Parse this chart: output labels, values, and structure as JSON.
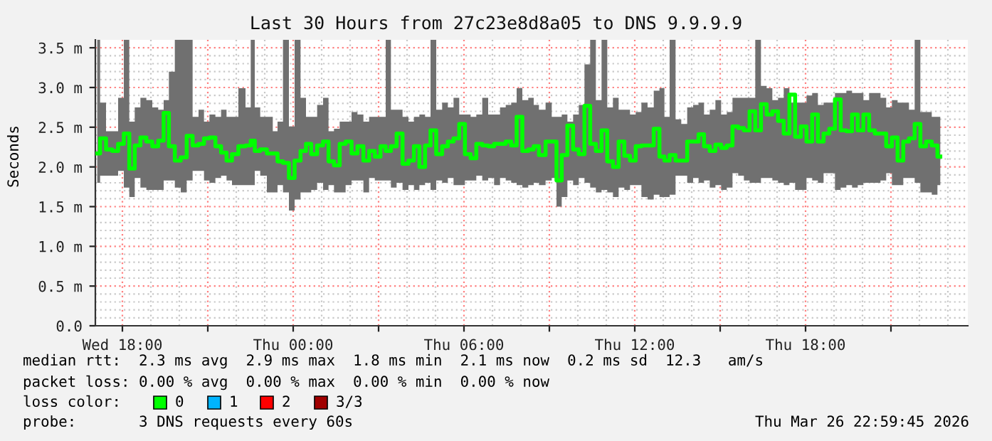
{
  "chart_data": {
    "type": "step",
    "title": "Last 30 Hours from 27c23e8d8a05 to DNS 9.9.9.9",
    "ylabel": "Seconds",
    "xlim": [
      "2026-03-25T17:03",
      "2026-03-26T23:42"
    ],
    "ylim": [
      0,
      3.6
    ],
    "xticks": [
      {
        "value": "2026-03-25T18:00",
        "label": "Wed 18:00"
      },
      {
        "value": "2026-03-25T21:00",
        "label": null
      },
      {
        "value": "2026-03-26T00:00",
        "label": "Thu 00:00"
      },
      {
        "value": "2026-03-26T03:00",
        "label": null
      },
      {
        "value": "2026-03-26T06:00",
        "label": "Thu 06:00"
      },
      {
        "value": "2026-03-26T09:00",
        "label": null
      },
      {
        "value": "2026-03-26T12:00",
        "label": "Thu 12:00"
      },
      {
        "value": "2026-03-26T15:00",
        "label": null
      },
      {
        "value": "2026-03-26T18:00",
        "label": "Thu 18:00"
      },
      {
        "value": "2026-03-26T21:00",
        "label": null
      }
    ],
    "yticks": [
      {
        "value": 0,
        "label": "0.0"
      },
      {
        "value": 0.5,
        "label": "0.5 m"
      },
      {
        "value": 1.0,
        "label": "1.0 m"
      },
      {
        "value": 1.5,
        "label": "1.5 m"
      },
      {
        "value": 2.0,
        "label": "2.0 m"
      },
      {
        "value": 2.5,
        "label": "2.5 m"
      },
      {
        "value": 3.0,
        "label": "3.0 m"
      },
      {
        "value": 3.5,
        "label": "3.5 m"
      }
    ],
    "grid": true,
    "annotations": [
      "median rtt:  2.3 ms avg  2.9 ms max  1.8 ms min  2.1 ms now  0.2 ms sd  12.3   am/s",
      "packet loss: 0.00 % avg  0.00 % max  0.00 % min  0.00 % now",
      "loss color:",
      "0",
      "1",
      "2",
      "3/3",
      "probe:       3 DNS requests every 60s",
      "Thu Mar 26 22:59:45 2026"
    ],
    "series": [
      {
        "color": "#00ff00",
        "x": [
          "2026-03-25T17:07",
          "2026-03-25T17:19",
          "2026-03-25T17:32",
          "2026-03-25T17:45",
          "2026-03-25T17:57",
          "2026-03-25T18:09",
          "2026-03-25T18:20",
          "2026-03-25T18:32",
          "2026-03-25T18:44",
          "2026-03-25T18:57",
          "2026-03-25T19:09",
          "2026-03-25T19:22",
          "2026-03-25T19:32",
          "2026-03-25T19:44",
          "2026-03-25T19:57",
          "2026-03-25T20:09",
          "2026-03-25T20:22",
          "2026-03-25T20:34",
          "2026-03-25T20:47",
          "2026-03-25T20:57",
          "2026-03-25T21:10",
          "2026-03-25T21:22",
          "2026-03-25T21:34",
          "2026-03-25T21:45",
          "2026-03-25T21:57",
          "2026-03-25T22:12",
          "2026-03-25T22:27",
          "2026-03-25T22:34",
          "2026-03-25T22:44",
          "2026-03-25T22:57",
          "2026-03-25T23:12",
          "2026-03-25T23:22",
          "2026-03-25T23:32",
          "2026-03-25T23:45",
          "2026-03-25T23:57",
          "2026-03-26T00:09",
          "2026-03-26T00:22",
          "2026-03-26T00:32",
          "2026-03-26T00:44",
          "2026-03-26T00:57",
          "2026-03-26T01:09",
          "2026-03-26T01:20",
          "2026-03-26T01:32",
          "2026-03-26T01:44",
          "2026-03-26T01:57",
          "2026-03-26T02:09",
          "2026-03-26T02:22",
          "2026-03-26T02:34",
          "2026-03-26T02:46",
          "2026-03-26T02:58",
          "2026-03-26T03:10",
          "2026-03-26T03:20",
          "2026-03-26T03:32",
          "2026-03-26T03:44",
          "2026-03-26T03:57",
          "2026-03-26T04:09",
          "2026-03-26T04:20",
          "2026-03-26T04:32",
          "2026-03-26T04:44",
          "2026-03-26T04:55",
          "2026-03-26T05:08",
          "2026-03-26T05:20",
          "2026-03-26T05:32",
          "2026-03-26T05:44",
          "2026-03-26T05:56",
          "2026-03-26T06:08",
          "2026-03-26T06:20",
          "2026-03-26T06:32",
          "2026-03-26T06:45",
          "2026-03-26T06:57",
          "2026-03-26T07:10",
          "2026-03-26T07:22",
          "2026-03-26T07:34",
          "2026-03-26T07:45",
          "2026-03-26T07:57",
          "2026-03-26T08:09",
          "2026-03-26T08:22",
          "2026-03-26T08:32",
          "2026-03-26T08:44",
          "2026-03-26T09:00",
          "2026-03-26T09:10",
          "2026-03-26T09:20",
          "2026-03-26T09:32",
          "2026-03-26T09:44",
          "2026-03-26T09:56",
          "2026-03-26T10:08",
          "2026-03-26T10:20",
          "2026-03-26T10:32",
          "2026-03-26T10:44",
          "2026-03-26T10:56",
          "2026-03-26T11:08",
          "2026-03-26T11:20",
          "2026-03-26T11:32",
          "2026-03-26T11:44",
          "2026-03-26T11:56",
          "2026-03-26T12:08",
          "2026-03-26T12:20",
          "2026-03-26T12:34",
          "2026-03-26T12:46",
          "2026-03-26T12:58",
          "2026-03-26T13:07",
          "2026-03-26T13:20",
          "2026-03-26T13:32",
          "2026-03-26T13:44",
          "2026-03-26T13:57",
          "2026-03-26T14:09",
          "2026-03-26T14:20",
          "2026-03-26T14:32",
          "2026-03-26T14:44",
          "2026-03-26T14:56",
          "2026-03-26T15:08",
          "2026-03-26T15:20",
          "2026-03-26T15:32",
          "2026-03-26T15:44",
          "2026-03-26T15:56",
          "2026-03-26T16:08",
          "2026-03-26T16:20",
          "2026-03-26T16:32",
          "2026-03-26T16:44",
          "2026-03-26T16:56",
          "2026-03-26T17:08",
          "2026-03-26T17:20",
          "2026-03-26T17:32",
          "2026-03-26T17:44",
          "2026-03-26T17:56",
          "2026-03-26T18:08",
          "2026-03-26T18:20",
          "2026-03-26T18:32",
          "2026-03-26T18:44",
          "2026-03-26T18:56",
          "2026-03-26T19:08",
          "2026-03-26T19:20",
          "2026-03-26T19:32",
          "2026-03-26T19:44",
          "2026-03-26T19:56",
          "2026-03-26T20:08",
          "2026-03-26T20:20",
          "2026-03-26T20:32",
          "2026-03-26T20:44",
          "2026-03-26T20:56",
          "2026-03-26T21:08",
          "2026-03-26T21:20",
          "2026-03-26T21:32",
          "2026-03-26T21:44",
          "2026-03-26T21:56",
          "2026-03-26T22:08",
          "2026-03-26T22:20",
          "2026-03-26T22:32",
          "2026-03-26T22:44"
        ],
        "values": [
          2.17,
          2.36,
          2.22,
          2.2,
          2.29,
          2.42,
          1.98,
          2.27,
          2.37,
          2.32,
          2.26,
          2.33,
          2.68,
          2.26,
          2.08,
          2.12,
          2.39,
          2.27,
          2.29,
          2.36,
          2.37,
          2.26,
          2.18,
          2.08,
          2.16,
          2.26,
          2.27,
          2.33,
          2.2,
          2.22,
          2.17,
          2.17,
          2.07,
          2.05,
          1.86,
          2.08,
          2.2,
          2.29,
          2.16,
          2.27,
          2.32,
          2.07,
          2.02,
          2.29,
          2.32,
          2.17,
          2.26,
          2.08,
          2.2,
          2.13,
          2.26,
          2.2,
          2.26,
          2.42,
          2.04,
          2.08,
          2.26,
          2.0,
          2.27,
          2.46,
          2.16,
          2.26,
          2.32,
          2.36,
          2.54,
          2.16,
          2.11,
          2.29,
          2.27,
          2.26,
          2.29,
          2.29,
          2.32,
          2.27,
          2.63,
          2.2,
          2.22,
          2.26,
          2.15,
          2.32,
          2.32,
          1.83,
          2.15,
          2.52,
          2.22,
          2.16,
          2.77,
          2.29,
          2.2,
          2.46,
          2.07,
          2.0,
          2.32,
          2.14,
          2.08,
          2.26,
          2.27,
          2.27,
          2.48,
          2.13,
          2.08,
          2.15,
          2.08,
          2.08,
          2.32,
          2.32,
          2.41,
          2.26,
          2.2,
          2.28,
          2.24,
          2.27,
          2.51,
          2.49,
          2.46,
          2.7,
          2.46,
          2.79,
          2.66,
          2.7,
          2.58,
          2.42,
          2.91,
          2.38,
          2.51,
          2.32,
          2.66,
          2.32,
          2.42,
          2.48,
          2.85,
          2.46,
          2.45,
          2.66,
          2.46,
          2.66,
          2.46,
          2.42,
          2.42,
          2.26,
          2.37,
          2.08,
          2.32,
          2.36,
          2.54,
          2.26,
          2.32,
          2.27,
          2.13
        ],
        "upper": [
          3.6,
          2.81,
          2.45,
          2.45,
          2.87,
          3.6,
          2.57,
          2.75,
          2.87,
          2.84,
          2.75,
          2.72,
          2.84,
          3.2,
          3.6,
          3.6,
          3.6,
          2.63,
          2.72,
          2.57,
          2.66,
          2.63,
          2.72,
          2.63,
          2.63,
          2.99,
          2.75,
          3.6,
          2.75,
          2.63,
          2.63,
          2.45,
          2.57,
          3.6,
          2.51,
          3.6,
          2.87,
          2.63,
          2.63,
          2.78,
          2.87,
          2.45,
          2.48,
          2.57,
          2.57,
          2.69,
          2.66,
          2.57,
          2.63,
          2.63,
          2.63,
          3.6,
          2.72,
          2.72,
          2.63,
          2.57,
          2.63,
          2.66,
          2.63,
          3.6,
          2.72,
          2.81,
          2.75,
          2.87,
          2.66,
          2.66,
          2.63,
          2.66,
          2.87,
          2.66,
          2.66,
          2.75,
          2.78,
          2.81,
          2.99,
          2.84,
          2.87,
          2.78,
          2.72,
          2.81,
          2.63,
          2.63,
          2.66,
          2.57,
          2.66,
          2.78,
          3.29,
          3.6,
          2.84,
          3.6,
          2.75,
          2.87,
          2.72,
          2.72,
          2.66,
          2.69,
          2.81,
          2.75,
          2.96,
          2.99,
          2.63,
          3.6,
          2.6,
          2.54,
          2.75,
          2.78,
          2.81,
          2.66,
          2.72,
          2.84,
          2.66,
          2.69,
          2.87,
          2.87,
          2.87,
          2.87,
          3.6,
          3.02,
          2.99,
          2.84,
          2.87,
          2.99,
          2.81,
          2.81,
          2.81,
          2.9,
          2.93,
          2.78,
          2.81,
          2.81,
          2.93,
          2.93,
          2.96,
          2.93,
          2.93,
          2.84,
          2.93,
          2.93,
          2.87,
          2.75,
          2.84,
          2.81,
          2.81,
          2.72,
          3.6,
          2.69,
          2.69,
          2.63,
          2.63
        ],
        "lower": [
          1.8,
          1.89,
          1.89,
          1.89,
          1.95,
          1.74,
          1.62,
          1.86,
          1.74,
          1.71,
          1.71,
          1.71,
          1.83,
          1.83,
          1.74,
          1.68,
          1.83,
          1.95,
          1.95,
          1.83,
          1.8,
          1.86,
          1.89,
          1.83,
          1.77,
          1.77,
          1.77,
          1.77,
          1.95,
          1.89,
          1.68,
          1.68,
          1.77,
          1.68,
          1.45,
          1.59,
          1.68,
          1.68,
          1.71,
          1.8,
          1.71,
          1.77,
          1.68,
          1.68,
          1.77,
          1.83,
          1.83,
          1.68,
          1.86,
          1.83,
          1.83,
          1.83,
          1.74,
          1.8,
          1.71,
          1.77,
          1.71,
          1.77,
          1.8,
          1.71,
          1.83,
          1.8,
          1.86,
          1.77,
          1.77,
          1.83,
          1.83,
          1.89,
          1.83,
          1.86,
          1.77,
          1.86,
          1.83,
          1.8,
          1.77,
          1.74,
          1.77,
          1.8,
          1.77,
          1.83,
          1.86,
          1.5,
          1.62,
          1.83,
          1.77,
          1.86,
          1.8,
          1.74,
          1.68,
          1.71,
          1.68,
          1.62,
          1.74,
          1.71,
          1.77,
          1.77,
          1.62,
          1.59,
          1.65,
          1.62,
          1.62,
          1.65,
          1.89,
          1.89,
          1.8,
          1.86,
          1.8,
          1.83,
          1.74,
          1.77,
          1.71,
          1.74,
          1.92,
          1.89,
          1.83,
          1.8,
          1.8,
          1.86,
          1.86,
          1.83,
          1.8,
          1.77,
          1.8,
          1.71,
          1.71,
          1.86,
          1.83,
          1.8,
          1.92,
          1.92,
          1.71,
          1.74,
          1.77,
          1.74,
          1.77,
          1.8,
          1.8,
          1.8,
          1.83,
          1.92,
          1.77,
          1.77,
          1.86,
          1.86,
          1.8,
          1.68,
          1.68,
          1.65,
          1.77
        ]
      }
    ]
  }
}
